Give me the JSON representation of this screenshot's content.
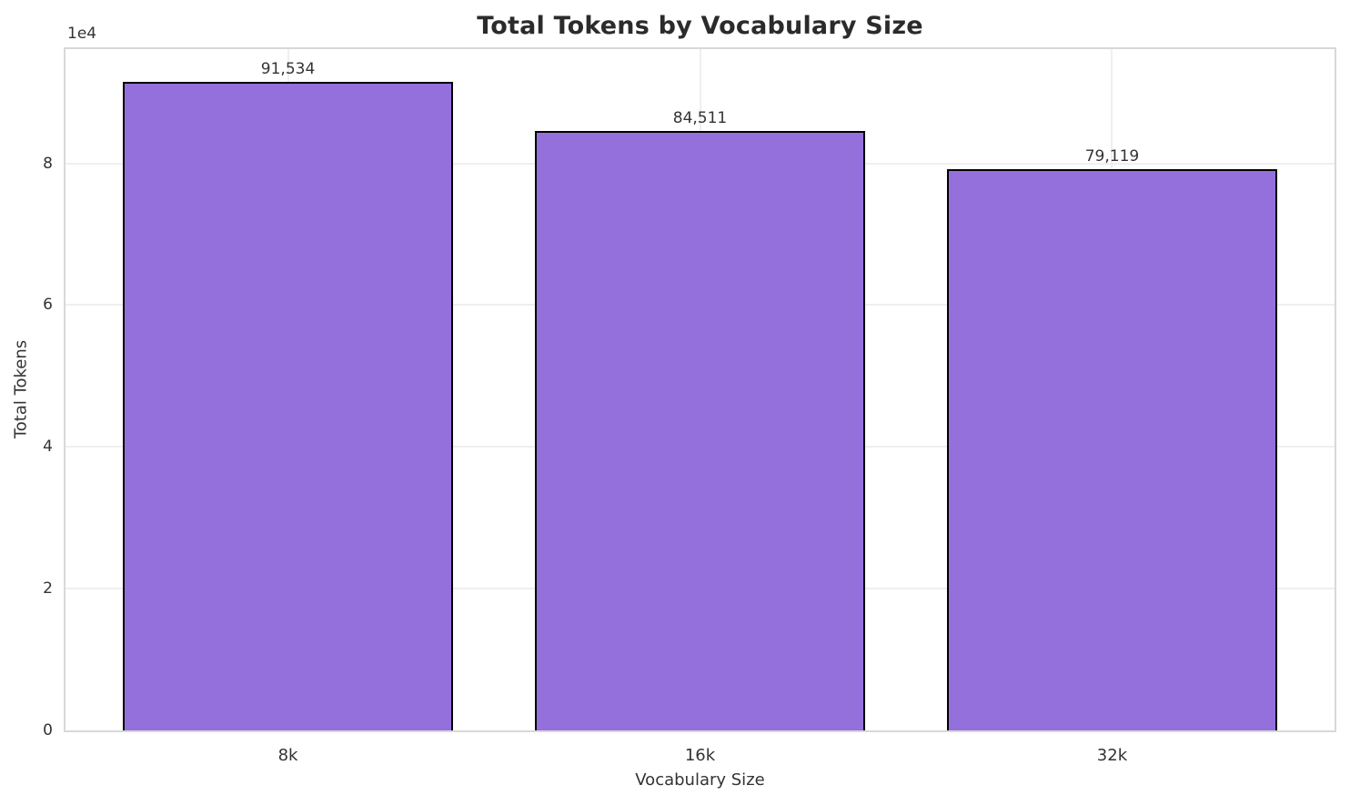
{
  "chart_data": {
    "type": "bar",
    "title": "Total Tokens by Vocabulary Size",
    "xlabel": "Vocabulary Size",
    "ylabel": "Total Tokens",
    "categories": [
      "8k",
      "16k",
      "32k"
    ],
    "values": [
      91534,
      84511,
      79119
    ],
    "value_labels": [
      "91,534",
      "84,511",
      "79,119"
    ],
    "ylim": [
      0,
      96110
    ],
    "ytick_values": [
      0,
      20000,
      40000,
      60000,
      80000
    ],
    "ytick_labels": [
      "0",
      "2",
      "4",
      "6",
      "8"
    ],
    "y_offset_label": "1e4",
    "grid": true,
    "legend": "none",
    "colors": {
      "bar_fill": "#9370DB",
      "bar_edge": "#000000",
      "grid": "#efefef",
      "spine": "#d8d8d8",
      "text": "#333333",
      "title": "#2b2b2b",
      "figure_background": "#ffffff",
      "plot_background": "#ffffff"
    }
  }
}
